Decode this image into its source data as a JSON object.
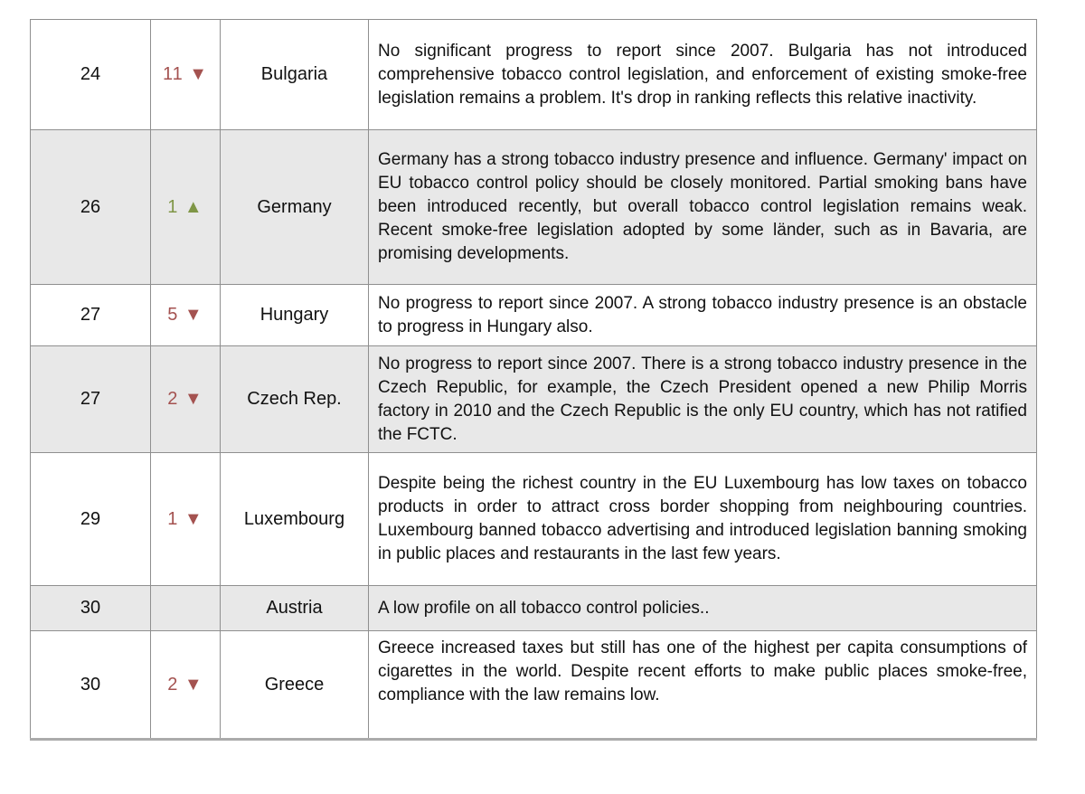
{
  "table": {
    "semantic": "eu-tobacco-control-ranking-table",
    "icons": {
      "down_arrow": "▼",
      "up_arrow": "▲"
    },
    "colors": {
      "rank_drop_red": "#a45250",
      "rank_rise_green": "#7f9646",
      "alt_row_gray": "#e8e8e8",
      "grid_border_gray": "#8f8f8f"
    },
    "rows": [
      {
        "rank": "24",
        "change_display": "11 ▼",
        "trend": "down",
        "country": "Bulgaria",
        "comment": "No significant progress to report since 2007. Bulgaria has not introduced comprehensive tobacco control legislation, and enforcement of existing smoke-free legislation remains a problem. It's drop in ranking reflects this relative inactivity."
      },
      {
        "rank": "26",
        "change_display": "1 ▲",
        "trend": "up",
        "country": "Germany",
        "comment": "Germany has a strong tobacco industry presence and influence. Germany' impact on EU tobacco control policy should be closely monitored. Partial smoking bans have been introduced recently, but overall tobacco control legislation remains weak. Recent smoke-free legislation adopted by some länder, such as in Bavaria, are promising developments."
      },
      {
        "rank": "27",
        "change_display": "5 ▼",
        "trend": "down",
        "country": "Hungary",
        "comment": "No progress to report since 2007. A strong tobacco industry presence is an obstacle to progress in Hungary also."
      },
      {
        "rank": "27",
        "change_display": "2 ▼",
        "trend": "down",
        "country": "Czech Rep.",
        "comment": "No progress to report since 2007. There is a strong tobacco industry presence in the Czech Republic, for example, the Czech President opened a new Philip Morris factory in 2010 and the Czech Republic is the only EU country, which has not ratified the FCTC."
      },
      {
        "rank": "29",
        "change_display": "1 ▼",
        "trend": "down",
        "country": "Luxembourg",
        "comment": "Despite being the richest country in the EU Luxembourg has low taxes on tobacco products in order to attract cross border shopping from neighbouring countries. Luxembourg banned tobacco advertising and introduced legislation banning smoking in public places and restaurants in the last few years."
      },
      {
        "rank": "30",
        "change_display": "",
        "trend": "",
        "country": "Austria",
        "comment": "A low profile on all tobacco control policies.."
      },
      {
        "rank": "30",
        "change_display": "2 ▼",
        "trend": "down",
        "country": "Greece",
        "comment": "Greece increased taxes but still has one of the highest per capita consumptions of cigarettes in the world. Despite recent efforts to make public places smoke-free, compliance with the law remains low."
      }
    ]
  }
}
